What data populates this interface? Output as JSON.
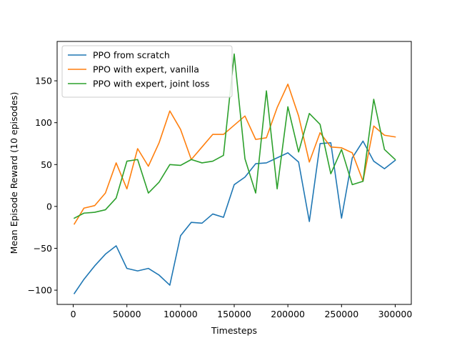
{
  "chart_data": {
    "type": "line",
    "xlabel": "Timesteps",
    "ylabel": "Mean Episode Reward (10 episodes)",
    "xlim": [
      -15000,
      315000
    ],
    "ylim": [
      -117,
      197
    ],
    "xticks": [
      {
        "value": 0,
        "label": "0"
      },
      {
        "value": 50000,
        "label": "50000"
      },
      {
        "value": 100000,
        "label": "100000"
      },
      {
        "value": 150000,
        "label": "150000"
      },
      {
        "value": 200000,
        "label": "200000"
      },
      {
        "value": 250000,
        "label": "250000"
      },
      {
        "value": 300000,
        "label": "300000"
      }
    ],
    "yticks": [
      {
        "value": -100,
        "label": "−100"
      },
      {
        "value": -50,
        "label": "−50"
      },
      {
        "value": 0,
        "label": "0"
      },
      {
        "value": 50,
        "label": "50"
      },
      {
        "value": 100,
        "label": "100"
      },
      {
        "value": 150,
        "label": "150"
      }
    ],
    "grid": false,
    "legend": "top-left",
    "x": [
      1000,
      10000,
      20000,
      30000,
      40000,
      50000,
      60000,
      70000,
      80000,
      90000,
      100000,
      110000,
      120000,
      130000,
      140000,
      150000,
      160000,
      170000,
      180000,
      190000,
      200000,
      210000,
      220000,
      230000,
      240000,
      250000,
      260000,
      270000,
      280000,
      290000,
      300000
    ],
    "series": [
      {
        "name": "PPO from scratch",
        "color": "#1f77b4",
        "values": [
          -104,
          -87,
          -71,
          -57,
          -47,
          -74,
          -77,
          -74,
          -82,
          -94,
          -35,
          -19,
          -20,
          -9,
          -13,
          26,
          35,
          51,
          52,
          58,
          64,
          53,
          -18,
          75,
          76,
          -14,
          58,
          78,
          54,
          45,
          55
        ]
      },
      {
        "name": "PPO with expert, vanilla",
        "color": "#ff7f0e",
        "values": [
          -21,
          -2,
          1,
          16,
          52,
          21,
          69,
          48,
          76,
          114,
          92,
          56,
          71,
          86,
          86,
          97,
          108,
          80,
          82,
          118,
          146,
          108,
          53,
          88,
          71,
          70,
          64,
          30,
          96,
          85,
          83
        ]
      },
      {
        "name": "PPO with expert, joint loss",
        "color": "#2ca02c",
        "values": [
          -14,
          -8,
          -7,
          -4,
          10,
          54,
          56,
          16,
          29,
          50,
          49,
          56,
          52,
          54,
          61,
          182,
          57,
          16,
          138,
          21,
          119,
          65,
          111,
          98,
          39,
          68,
          26,
          30,
          128,
          68,
          56
        ]
      }
    ]
  }
}
